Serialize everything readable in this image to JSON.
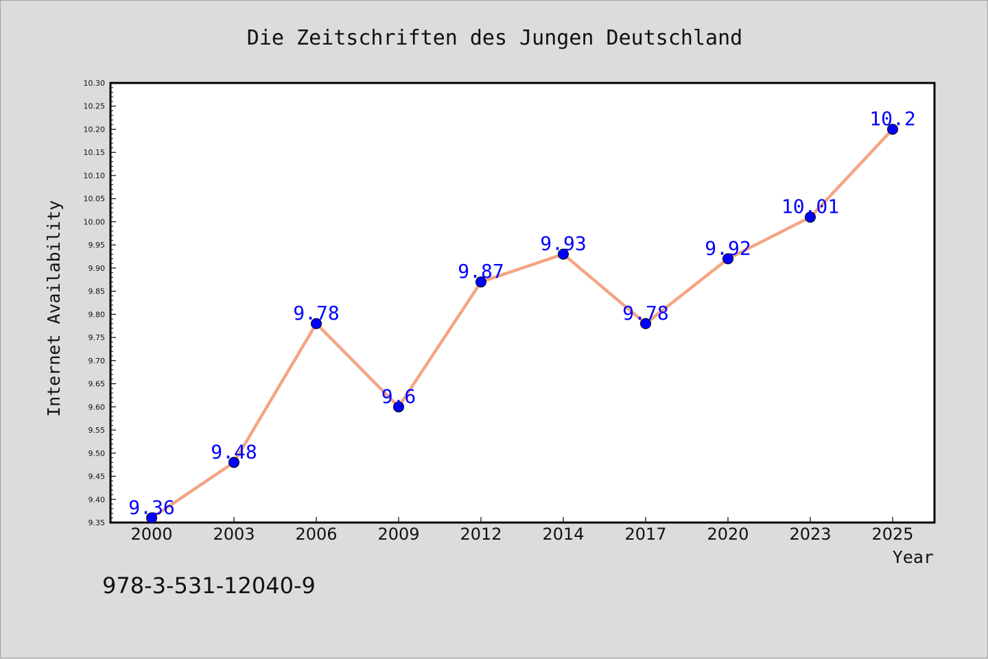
{
  "chart_data": {
    "type": "line",
    "title": "Die Zeitschriften des Jungen Deutschland",
    "xlabel": "Year",
    "ylabel": "Internet Availability",
    "categories": [
      "2000",
      "2003",
      "2006",
      "2009",
      "2012",
      "2014",
      "2017",
      "2020",
      "2023",
      "2025"
    ],
    "values": [
      9.36,
      9.48,
      9.78,
      9.6,
      9.87,
      9.93,
      9.78,
      9.92,
      10.01,
      10.2
    ],
    "data_labels": [
      "9.36",
      "9.48",
      "9.78",
      "9.6",
      "9.87",
      "9.93",
      "9.78",
      "9.92",
      "10.01",
      "10.2"
    ],
    "ylim": [
      9.35,
      10.3
    ],
    "yticks": [
      "9.35",
      "9.40",
      "9.45",
      "9.50",
      "9.55",
      "9.60",
      "9.65",
      "9.70",
      "9.75",
      "9.80",
      "9.85",
      "9.90",
      "9.95",
      "10.00",
      "10.05",
      "10.10",
      "10.15",
      "10.20",
      "10.25",
      "10.30"
    ],
    "grid": false,
    "line_color": "#f4a582",
    "marker_color": "#0000ff",
    "label_color": "#0000ff"
  },
  "annotation": "978-3-531-12040-9"
}
